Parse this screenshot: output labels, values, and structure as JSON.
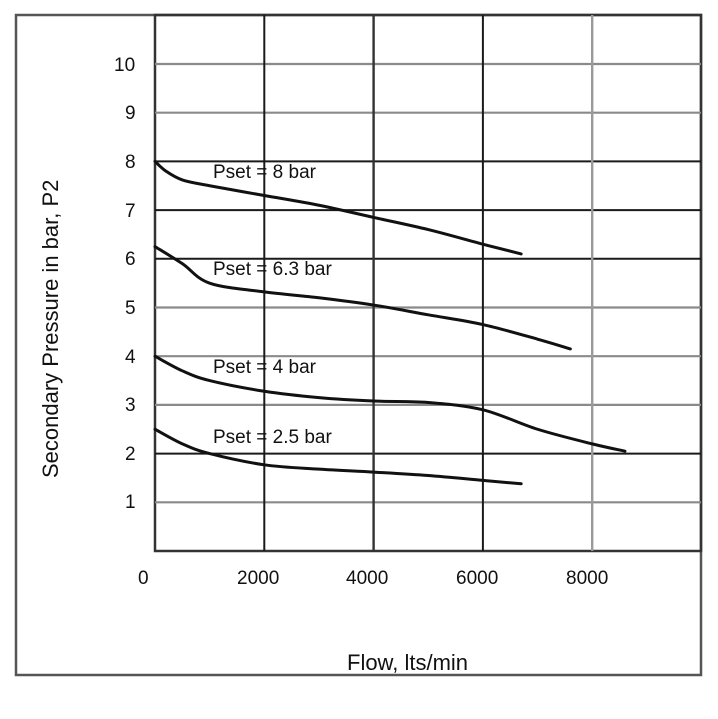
{
  "chart_data": {
    "type": "line",
    "title": "",
    "xlabel": "Flow, lts/min",
    "ylabel": "Secondary Pressure in bar, P2",
    "xlim": [
      0,
      10000
    ],
    "ylim": [
      0,
      11
    ],
    "x_ticks": [
      "0",
      "2000",
      "4000",
      "6000",
      "8000"
    ],
    "x_tick_values": [
      0,
      2000,
      4000,
      6000,
      8000
    ],
    "y_ticks": [
      "1",
      "2",
      "3",
      "4",
      "5",
      "6",
      "7",
      "8",
      "9",
      "10"
    ],
    "y_tick_values": [
      1,
      2,
      3,
      4,
      5,
      6,
      7,
      8,
      9,
      10
    ],
    "grid": true,
    "legend": "inline labels",
    "series": [
      {
        "name": "Pset = 8 bar",
        "x": [
          0,
          200,
          500,
          1000,
          2000,
          3000,
          4000,
          5000,
          6000,
          6700
        ],
        "y": [
          8.0,
          7.8,
          7.62,
          7.5,
          7.3,
          7.1,
          6.85,
          6.6,
          6.3,
          6.1
        ]
      },
      {
        "name": "Pset = 6.3 bar",
        "x": [
          0,
          500,
          1000,
          2000,
          3000,
          4000,
          5000,
          6000,
          7000,
          7600
        ],
        "y": [
          6.25,
          5.9,
          5.5,
          5.32,
          5.2,
          5.05,
          4.85,
          4.65,
          4.35,
          4.15
        ]
      },
      {
        "name": "Pset = 4 bar",
        "x": [
          0,
          500,
          1000,
          2000,
          3000,
          4000,
          5000,
          6000,
          7000,
          8000,
          8600
        ],
        "y": [
          4.0,
          3.7,
          3.5,
          3.28,
          3.15,
          3.08,
          3.05,
          2.9,
          2.5,
          2.2,
          2.05
        ]
      },
      {
        "name": "Pset = 2.5 bar",
        "x": [
          0,
          500,
          1000,
          2000,
          3000,
          4000,
          5000,
          6000,
          6700
        ],
        "y": [
          2.5,
          2.2,
          2.0,
          1.77,
          1.68,
          1.62,
          1.55,
          1.45,
          1.38
        ]
      }
    ]
  },
  "labels": {
    "ylabel": "Secondary Pressure in bar, P2",
    "xlabel": "Flow, lts/min",
    "x_ticks": [
      "0",
      "2000",
      "4000",
      "6000",
      "8000"
    ],
    "y_ticks": [
      "10",
      "9",
      "8",
      "7",
      "6",
      "5",
      "4",
      "3",
      "2",
      "1"
    ],
    "curves": [
      "Pset = 8 bar",
      "Pset = 6.3 bar",
      "Pset = 4 bar",
      "Pset = 2.5 bar"
    ]
  },
  "colors": {
    "line": "#111111",
    "grid_dark": "#1a1a1a",
    "grid_light": "#8a8a8a",
    "frame": "#555555"
  }
}
